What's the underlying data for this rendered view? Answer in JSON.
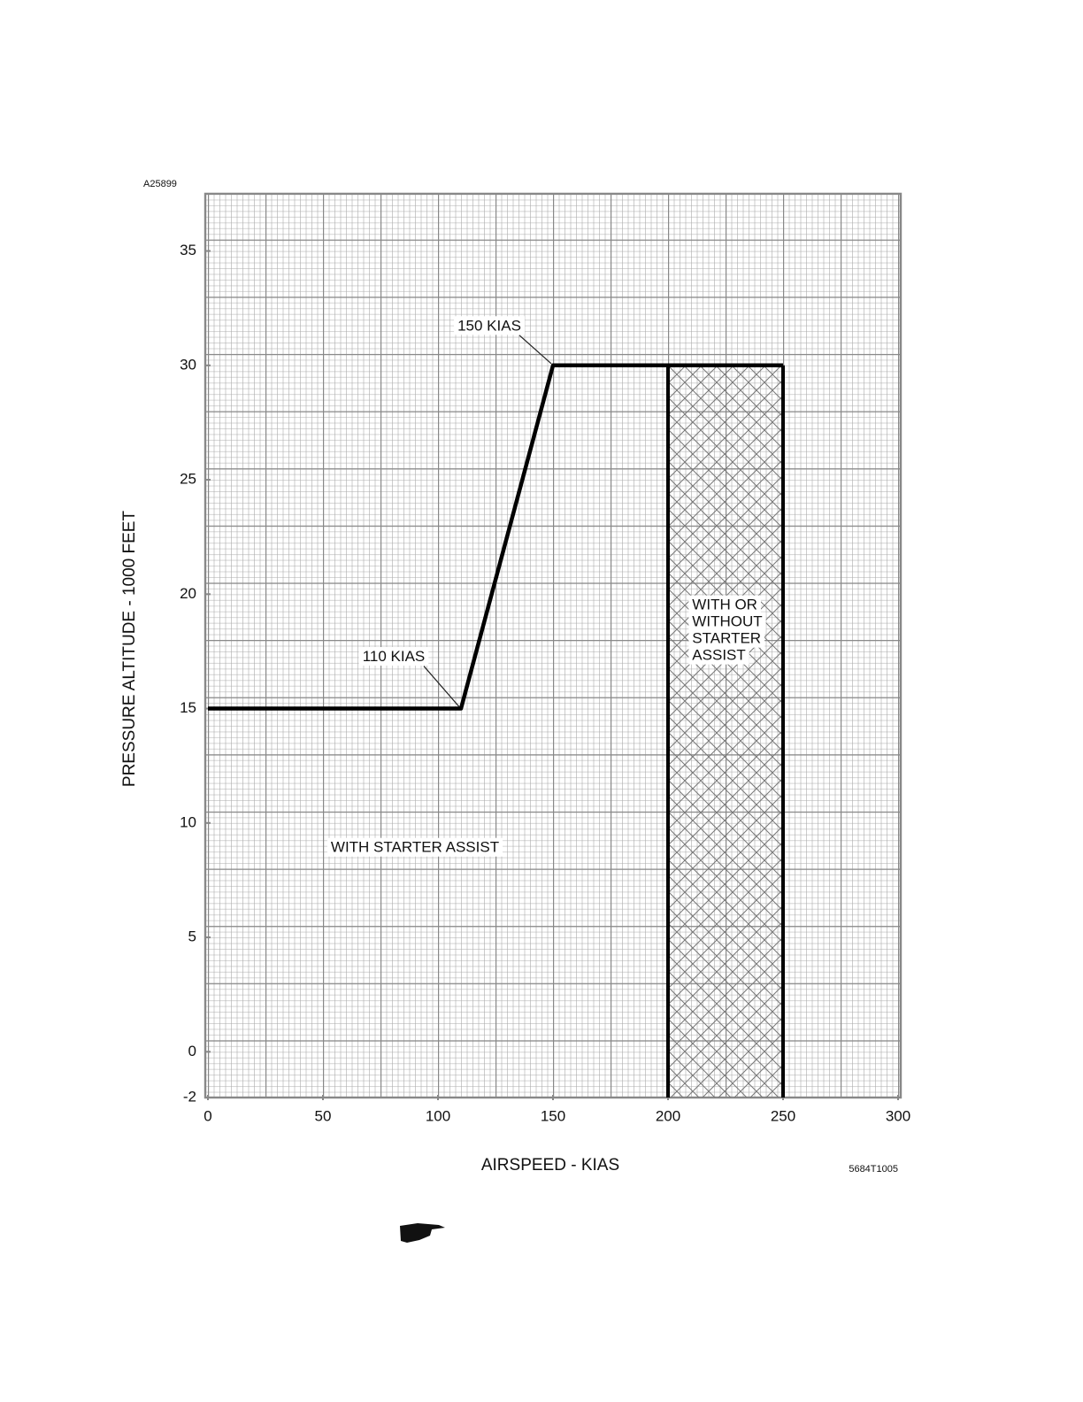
{
  "chart_data": {
    "type": "line",
    "figure_id": "A25899",
    "drawing_id": "5684T1005",
    "x_label": "AIRSPEED - KIAS",
    "y_label": "PRESSURE ALTITUDE - 1000 FEET",
    "xlim": [
      0,
      300
    ],
    "ylim": [
      -2,
      37.5
    ],
    "xticks": [
      0,
      50,
      100,
      150,
      200,
      250,
      300
    ],
    "yticks": [
      -2,
      0,
      5,
      10,
      15,
      20,
      25,
      30,
      35
    ],
    "grid": true,
    "series": [
      {
        "x": [
          0,
          110,
          150,
          200,
          250
        ],
        "values": [
          15,
          15,
          30,
          30,
          30
        ],
        "color": "#000000"
      }
    ],
    "region": {
      "x": [
        200,
        250
      ],
      "y": [
        -2,
        30
      ],
      "color": "#777777"
    },
    "annotations": [
      {
        "text": "150 KIAS",
        "x": 150,
        "y": 30
      },
      {
        "text": "110 KIAS",
        "x": 110,
        "y": 15
      },
      {
        "text": "WITH STARTER ASSIST"
      },
      {
        "lines": [
          "WITH OR",
          "WITHOUT",
          "STARTER",
          "ASSIST"
        ]
      }
    ]
  }
}
